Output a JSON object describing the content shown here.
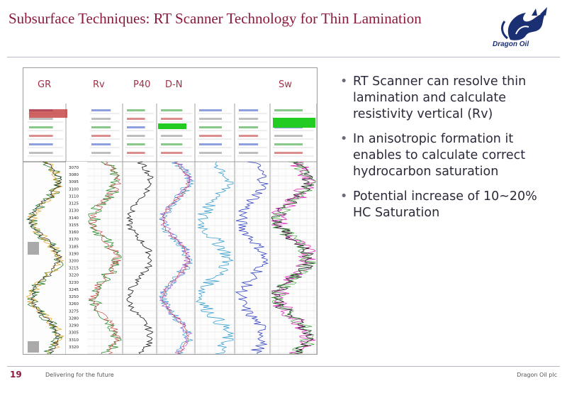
{
  "slide": {
    "title": "Subsurface Techniques: RT Scanner Technology for Thin Lamination",
    "logo_text": "Dragon Oil",
    "page_number": "19",
    "footer_left": "Delivering for the future",
    "footer_right": "Dragon Oil plc"
  },
  "figure": {
    "track_labels": [
      "GR",
      "Rv",
      "P40",
      "D-N",
      "Sw"
    ],
    "depth_ticks": [
      "3070",
      "3080",
      "3095",
      "3100",
      "3110",
      "3125",
      "3130",
      "3140",
      "3155",
      "3160",
      "3170",
      "3185",
      "3190",
      "3200",
      "3215",
      "3220",
      "3230",
      "3245",
      "3250",
      "3260",
      "3275",
      "3280",
      "3290",
      "3305",
      "3310",
      "3320"
    ],
    "colors": {
      "gr_curve": "#2a7a2a",
      "rv_curve": "#2f8f2f",
      "p40_curve": "#1a1a1a",
      "dn_curve": "#3aa0d0",
      "res_curve": "#3040c0",
      "sw_curve": "#e030c0",
      "header_green": "#22cc22",
      "header_red": "#c03030"
    }
  },
  "bullets": [
    "RT Scanner can resolve thin lamination and calculate resistivity vertical (Rv)",
    "In anisotropic formation it enables to calculate correct hydrocarbon saturation",
    "Potential increase of 10~20% HC Saturation"
  ]
}
